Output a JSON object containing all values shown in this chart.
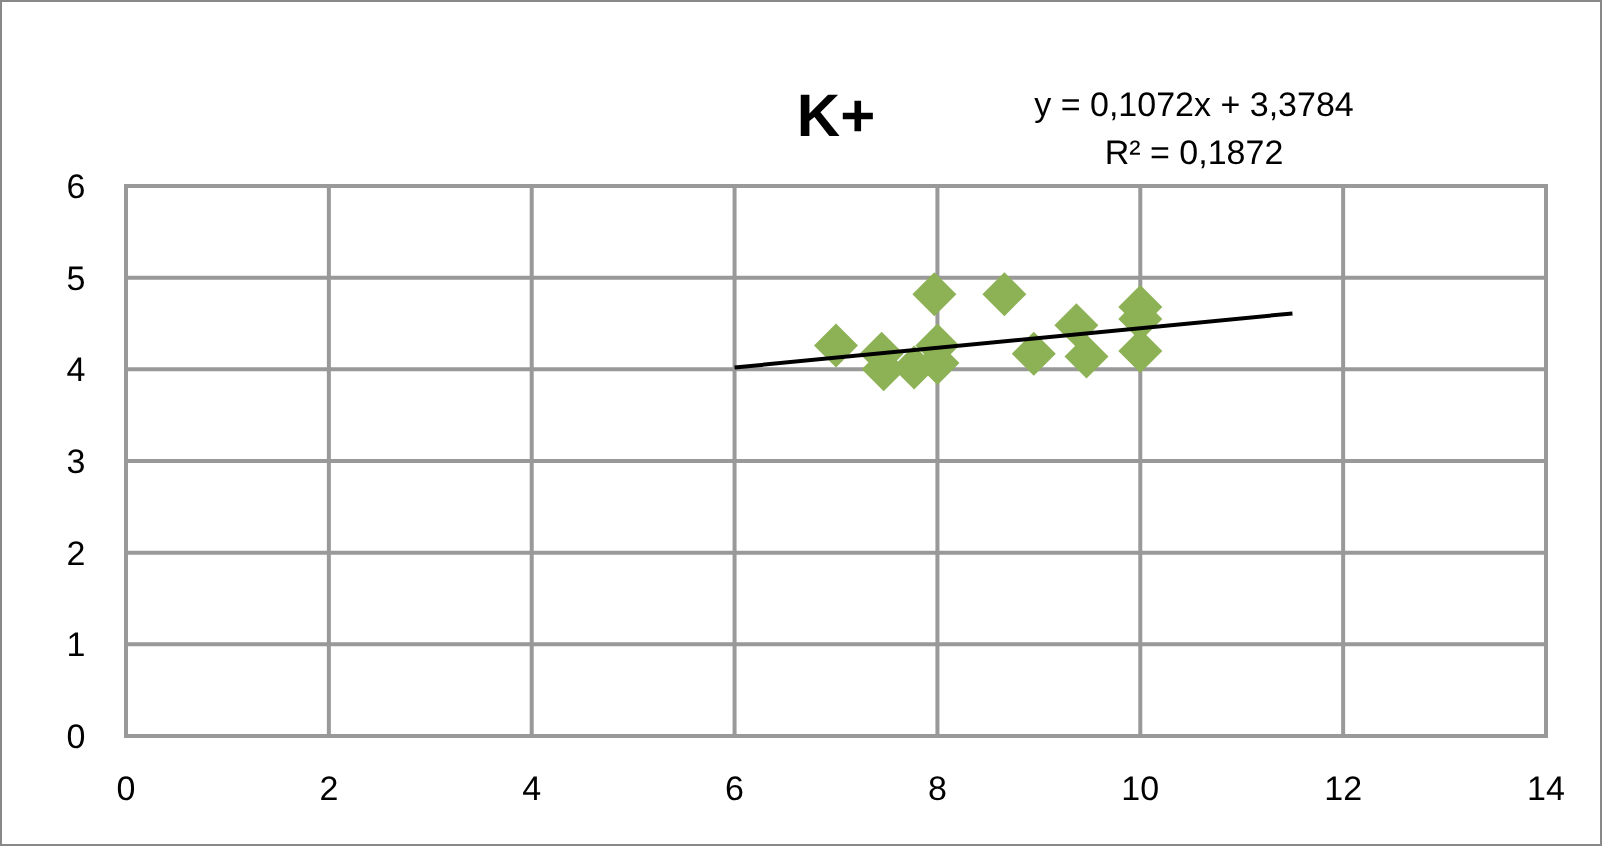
{
  "chart_data": {
    "type": "scatter",
    "title": "K+",
    "grid": true,
    "xlim": [
      0,
      14
    ],
    "xticks": [
      0,
      2,
      4,
      6,
      8,
      10,
      12,
      14
    ],
    "ylim": [
      0,
      6
    ],
    "yticks": [
      0,
      1,
      2,
      3,
      4,
      5,
      6
    ],
    "series": [
      {
        "marker": "diamond",
        "color": "#8db255",
        "x": [
          7,
          7.45,
          7.47,
          7.77,
          7.97,
          8,
          8,
          8.66,
          8.95,
          9.37,
          9.47,
          10,
          10,
          10
        ],
        "values": [
          4.26,
          4.17,
          4.0,
          4.02,
          4.82,
          4.26,
          4.07,
          4.82,
          4.17,
          4.48,
          4.14,
          4.68,
          4.55,
          4.2
        ]
      },
      {
        "type": "line",
        "marker": "none",
        "color": "#000000",
        "x": [
          6,
          11.5
        ],
        "values": [
          4.02,
          4.61
        ]
      }
    ],
    "annotations": [
      "y = 0,1072x + 3,3784",
      "R² = 0,1872"
    ]
  }
}
